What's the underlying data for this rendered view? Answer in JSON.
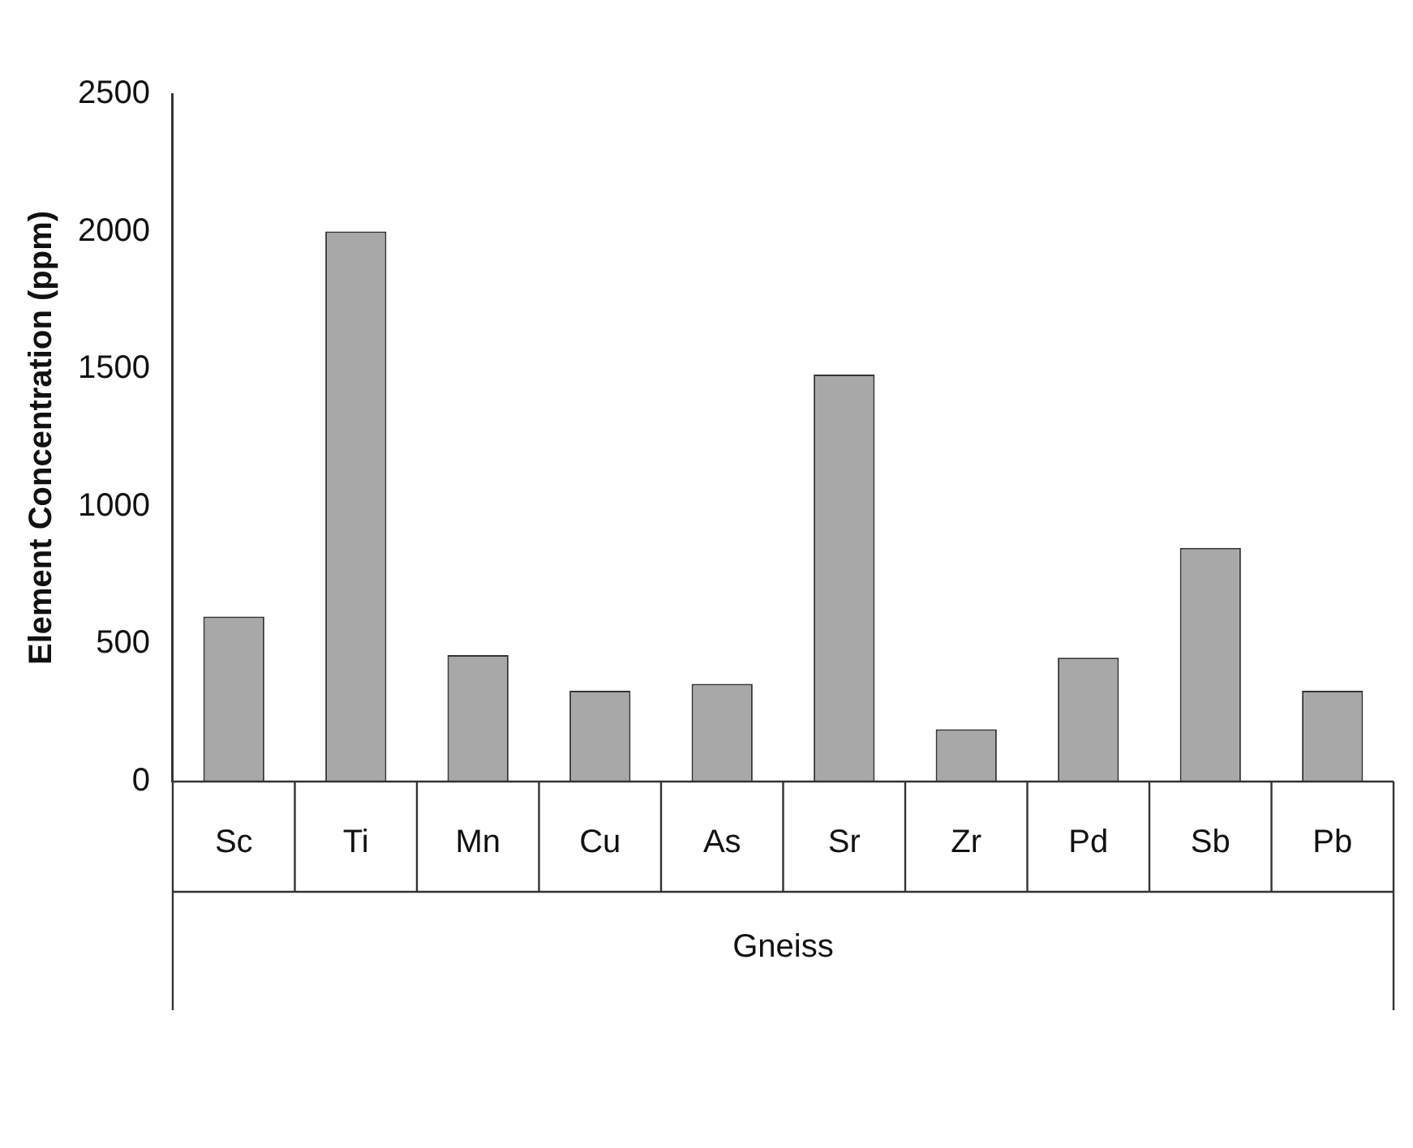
{
  "chart_data": {
    "type": "bar",
    "xlabel": "Gneiss",
    "ylabel": "Element Concentration (ppm)",
    "categories": [
      "Sc",
      "Ti",
      "Mn",
      "Cu",
      "As",
      "Sr",
      "Zr",
      "Pd",
      "Sb",
      "Pb"
    ],
    "values": [
      600,
      2000,
      460,
      330,
      355,
      1480,
      190,
      450,
      850,
      330
    ],
    "color": "#a8a8a8",
    "ylim": [
      0,
      2500
    ],
    "yticks": [
      0,
      500,
      1000,
      1500,
      2000,
      2500
    ],
    "grid": false,
    "legend": false
  }
}
